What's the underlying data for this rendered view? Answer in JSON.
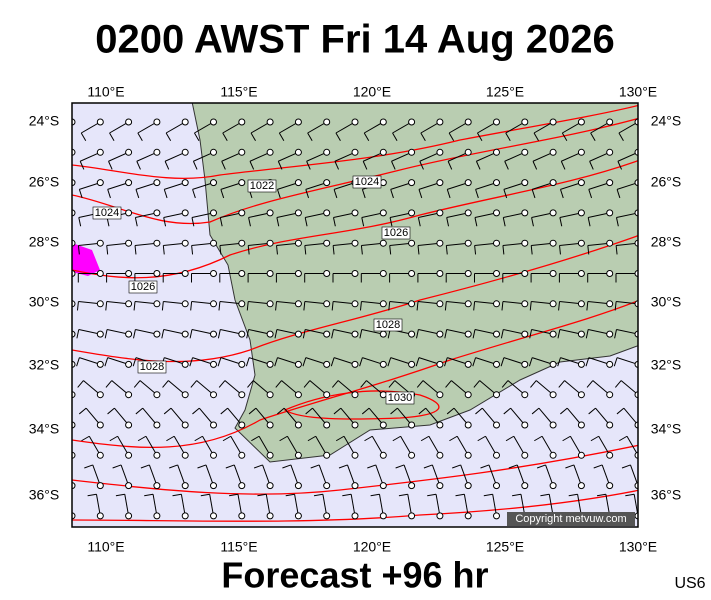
{
  "header": {
    "title": "0200 AWST Fri 14 Aug 2026"
  },
  "axes": {
    "longitudes": [
      "110°E",
      "115°E",
      "120°E",
      "125°E",
      "130°E"
    ],
    "latitudes": [
      "24°S",
      "26°S",
      "28°S",
      "30°S",
      "32°S",
      "34°S",
      "36°S"
    ]
  },
  "isobar_labels": [
    "1024",
    "1026",
    "1028",
    "1022",
    "1024",
    "1026",
    "1028",
    "1030"
  ],
  "credit": "Copyright metvuw.com",
  "footer": {
    "forecast": "Forecast +96 hr",
    "region": "US6"
  }
}
